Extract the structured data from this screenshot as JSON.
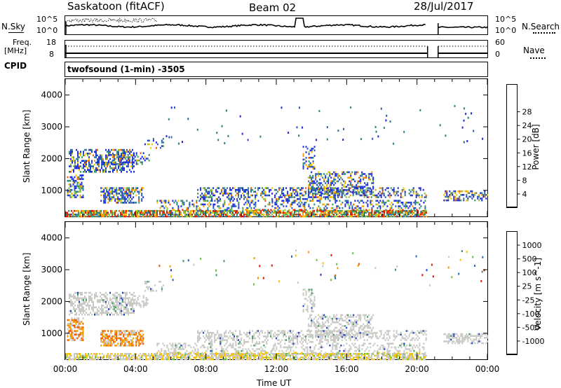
{
  "header": {
    "station": "Saskatoon (fitACF)",
    "beam": "Beam 02",
    "date": "28/Jul/2017"
  },
  "noise_panel": {
    "left_label": "N.Sky",
    "right_label": "N.Search",
    "left_ticks": [
      "10^5",
      "10^0"
    ],
    "right_ticks": [
      "10^5",
      "10^0"
    ]
  },
  "freq_panel": {
    "left_label_1": "Freq.",
    "left_label_2": "[MHz]",
    "right_label": "Nave",
    "left_ticks": [
      "18",
      "8"
    ],
    "right_ticks": [
      "60",
      "0"
    ]
  },
  "cpid": {
    "label": "CPID",
    "value": "twofsound (1-min) -3505"
  },
  "chart_data": [
    {
      "type": "heatmap",
      "name": "power",
      "ylabel": "Slant Range [km]",
      "xlabel": "",
      "y_ticks": [
        1000,
        2000,
        3000,
        4000
      ],
      "ylim": [
        180,
        4500
      ],
      "xlim_hours": [
        0,
        24
      ],
      "colorbar": {
        "label": "Power [dB]",
        "ticks": [
          "4",
          "8",
          "12",
          "16",
          "20",
          "24",
          "28"
        ],
        "colors": [
          "#1c2cd8",
          "#2f55b8",
          "#2f7d8a",
          "#3a9a5c",
          "#8fc23c",
          "#f5c400",
          "#f39a00",
          "#f05a00",
          "#e51400"
        ]
      }
    },
    {
      "type": "heatmap",
      "name": "velocity",
      "ylabel": "Slant Range [km]",
      "xlabel": "Time UT",
      "y_ticks": [
        1000,
        2000,
        3000,
        4000
      ],
      "ylim": [
        180,
        4500
      ],
      "xlim_hours": [
        0,
        24
      ],
      "x_ticks": [
        "00:00",
        "04:00",
        "08:00",
        "12:00",
        "16:00",
        "20:00",
        "00:00"
      ],
      "colorbar": {
        "label": "Velocity [m s^-1]",
        "ticks": [
          "1000",
          "500",
          "100",
          "25",
          "-25",
          "-100",
          "-500",
          "-1000"
        ],
        "colors": [
          "#2040c8",
          "#2c68b0",
          "#3a9a5c",
          "#64c23a",
          "#c8c8c4",
          "#f5c400",
          "#f39a00",
          "#f05a00",
          "#e51400"
        ]
      }
    }
  ]
}
